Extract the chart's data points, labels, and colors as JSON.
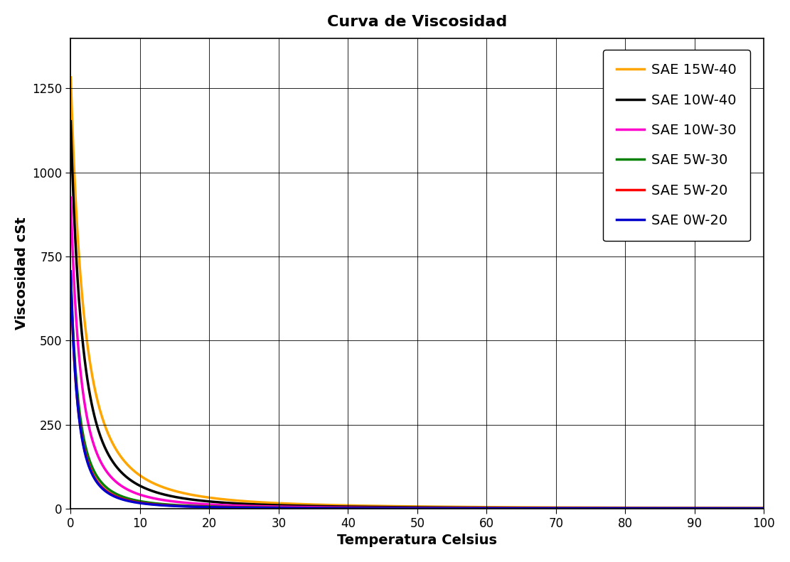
{
  "title": "Curva de Viscosidad",
  "xlabel": "Temperatura Celsius",
  "ylabel": "Viscosidad cSt",
  "xlim": [
    0,
    100
  ],
  "ylim": [
    0,
    1400
  ],
  "xticks": [
    0,
    10,
    20,
    30,
    40,
    50,
    60,
    70,
    80,
    90,
    100
  ],
  "yticks": [
    0,
    250,
    500,
    750,
    1000,
    1250
  ],
  "series": [
    {
      "label": "SAE 15W-40",
      "color": "#FFA500",
      "a": 22000,
      "c": 4.0,
      "n": 2.05
    },
    {
      "label": "SAE 10W-40",
      "color": "#000000",
      "a": 16000,
      "c": 3.5,
      "n": 2.1
    },
    {
      "label": "SAE 10W-30",
      "color": "#FF00CC",
      "a": 9500,
      "c": 3.0,
      "n": 2.12
    },
    {
      "label": "SAE 5W-30",
      "color": "#008000",
      "a": 5000,
      "c": 2.5,
      "n": 2.15
    },
    {
      "label": "SAE 5W-20",
      "color": "#FF0000",
      "a": 4200,
      "c": 2.3,
      "n": 2.18
    },
    {
      "label": "SAE 0W-20",
      "color": "#0000CC",
      "a": 4000,
      "c": 2.2,
      "n": 2.2
    }
  ],
  "background_color": "#ffffff",
  "title_fontsize": 16,
  "label_fontsize": 14,
  "tick_fontsize": 12,
  "legend_fontsize": 14,
  "line_width": 2.5
}
